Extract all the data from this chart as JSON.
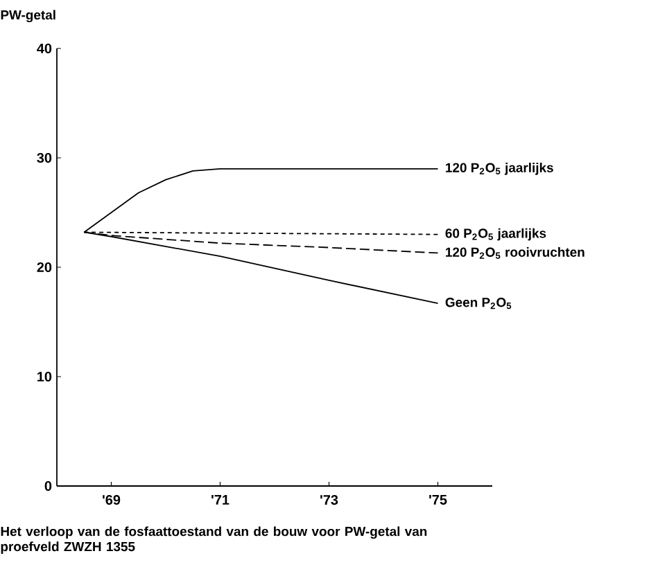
{
  "chart_data": {
    "type": "line",
    "title": "Het verloop van de fosfaattoestand van de bouw voor PW-getal van proefveld ZWZH 1355",
    "ylabel": "PW-getal",
    "xlim": [
      1968,
      1976
    ],
    "ylim": [
      0,
      40
    ],
    "xticks": [
      {
        "value": 1969,
        "label": "'69"
      },
      {
        "value": 1971,
        "label": "'71"
      },
      {
        "value": 1973,
        "label": "'73"
      },
      {
        "value": 1975,
        "label": "'75"
      }
    ],
    "yticks": [
      0,
      10,
      20,
      30,
      40
    ],
    "series": [
      {
        "name": "120 P$_{2}$O$_{5}$ jaarlijks",
        "color": "#000000",
        "line_style": "solid",
        "x": [
          1968.5,
          1969,
          1969.5,
          1970,
          1970.5,
          1971,
          1973,
          1975
        ],
        "values": [
          23.2,
          25,
          26.8,
          28,
          28.8,
          29,
          29,
          29
        ]
      },
      {
        "name": "60 P$_{2}$O$_{5}$ jaarlijks",
        "color": "#000000",
        "line_style": "dotted",
        "x": [
          1968.5,
          1975
        ],
        "values": [
          23.2,
          23
        ]
      },
      {
        "name": "120 P$_{2}$O$_{5}$ rooivruchten",
        "color": "#000000",
        "line_style": "dashed",
        "x": [
          1968.5,
          1969,
          1971,
          1973,
          1975
        ],
        "values": [
          23.2,
          22.9,
          22.2,
          21.8,
          21.3
        ]
      },
      {
        "name": "Geen P$_{2}$O$_{5}$",
        "color": "#000000",
        "line_style": "solid",
        "x": [
          1968.5,
          1969,
          1971,
          1973,
          1975
        ],
        "values": [
          23.2,
          22.8,
          21,
          18.8,
          16.7
        ]
      }
    ]
  }
}
